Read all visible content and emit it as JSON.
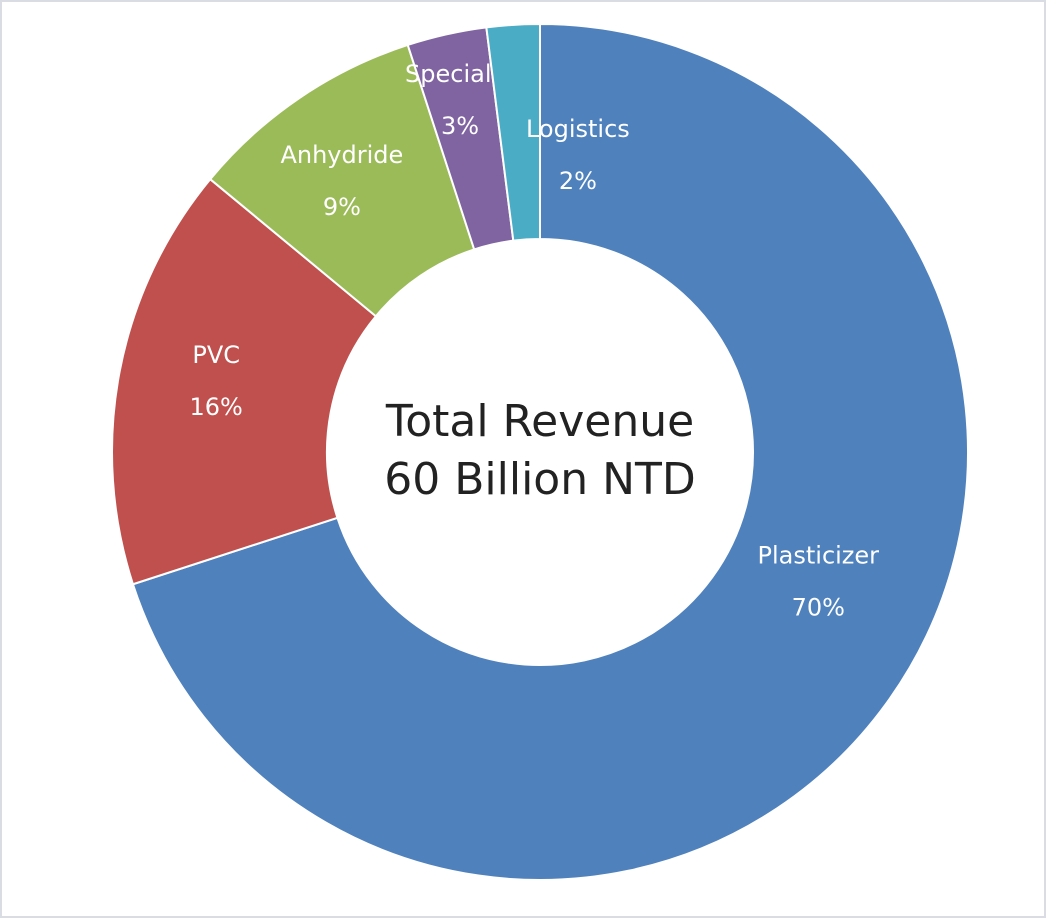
{
  "chart_data": {
    "type": "donut",
    "categories": [
      "Plasticizer",
      "PVC",
      "Anhydride",
      "Specialty",
      "Logistics"
    ],
    "values": [
      70,
      16,
      9,
      3,
      2
    ],
    "value_labels": [
      "70%",
      "16%",
      "9%",
      "3%",
      "2%"
    ],
    "colors": [
      "#4f81bd",
      "#c0504d",
      "#9bbb59",
      "#8064a2",
      "#4bacc6"
    ],
    "center_label": [
      "Total Revenue",
      "60 Billion NTD"
    ]
  }
}
